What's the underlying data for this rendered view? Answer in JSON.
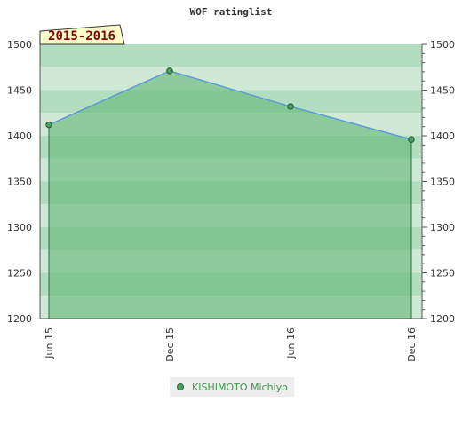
{
  "chart_data": {
    "type": "area",
    "title": "WOF ratinglist",
    "season_label": "2015-2016",
    "categories": [
      "Jun 15",
      "Dec 15",
      "Jun 16",
      "Dec 16"
    ],
    "series": [
      {
        "name": "KISHIMOTO Michiyo",
        "values": [
          1412,
          1471,
          1432,
          1396
        ]
      }
    ],
    "ylim": [
      1200,
      1500
    ],
    "y_ticks": [
      "1200",
      "1250",
      "1300",
      "1350",
      "1400",
      "1450",
      "1500"
    ],
    "y_axis": "both sides",
    "legend": "bottom-center",
    "colors": {
      "line": "#5b9bd5",
      "marker": "#4aa35c",
      "area": "#8fcb9c",
      "label_box": "#ffffcc",
      "label_text": "#8b0000"
    }
  }
}
